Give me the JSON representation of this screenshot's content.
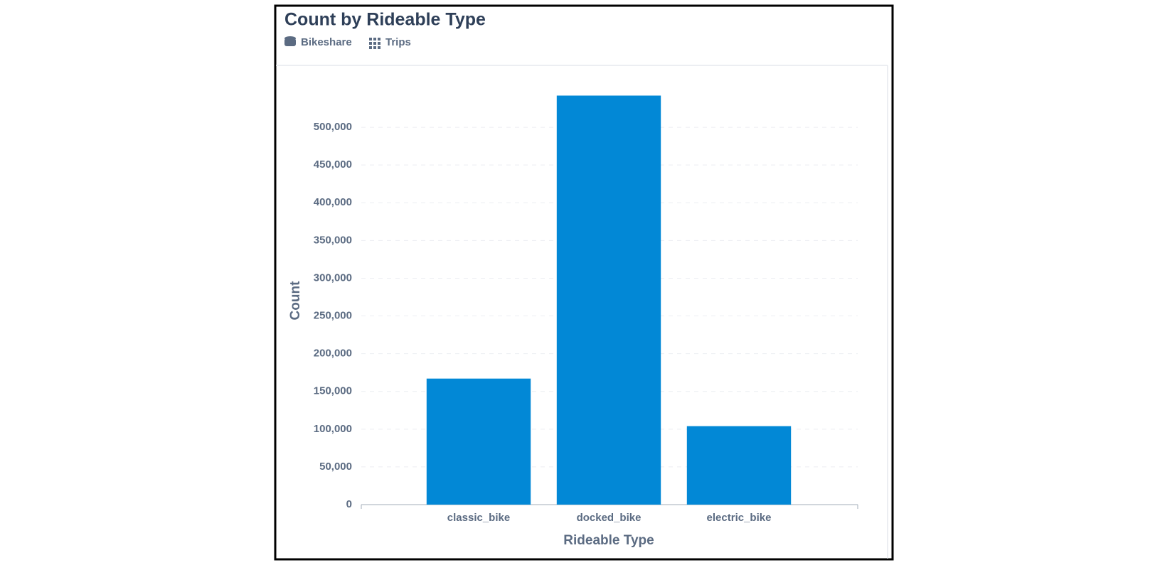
{
  "header": {
    "title": "Count by Rideable Type",
    "database": "Bikeshare",
    "table": "Trips"
  },
  "chart_data": {
    "type": "bar",
    "x_label": "Rideable Type",
    "y_label": "Count",
    "categories": [
      "classic_bike",
      "docked_bike",
      "electric_bike"
    ],
    "values": [
      167000,
      542000,
      104000
    ],
    "color": "#0288d6",
    "ylim": [
      0,
      550000
    ],
    "yticks": [
      0,
      {
        "value": 50000,
        "label": "50,000"
      },
      {
        "value": 100000,
        "label": "100,000"
      },
      {
        "value": 150000,
        "label": "150,000"
      },
      {
        "value": 200000,
        "label": "200,000"
      },
      {
        "value": 250000,
        "label": "250,000"
      },
      {
        "value": 300000,
        "label": "300,000"
      },
      {
        "value": 350000,
        "label": "350,000"
      },
      {
        "value": 400000,
        "label": "400,000"
      },
      {
        "value": 450000,
        "label": "450,000"
      },
      {
        "value": 500000,
        "label": "500,000"
      }
    ],
    "grid": true
  }
}
